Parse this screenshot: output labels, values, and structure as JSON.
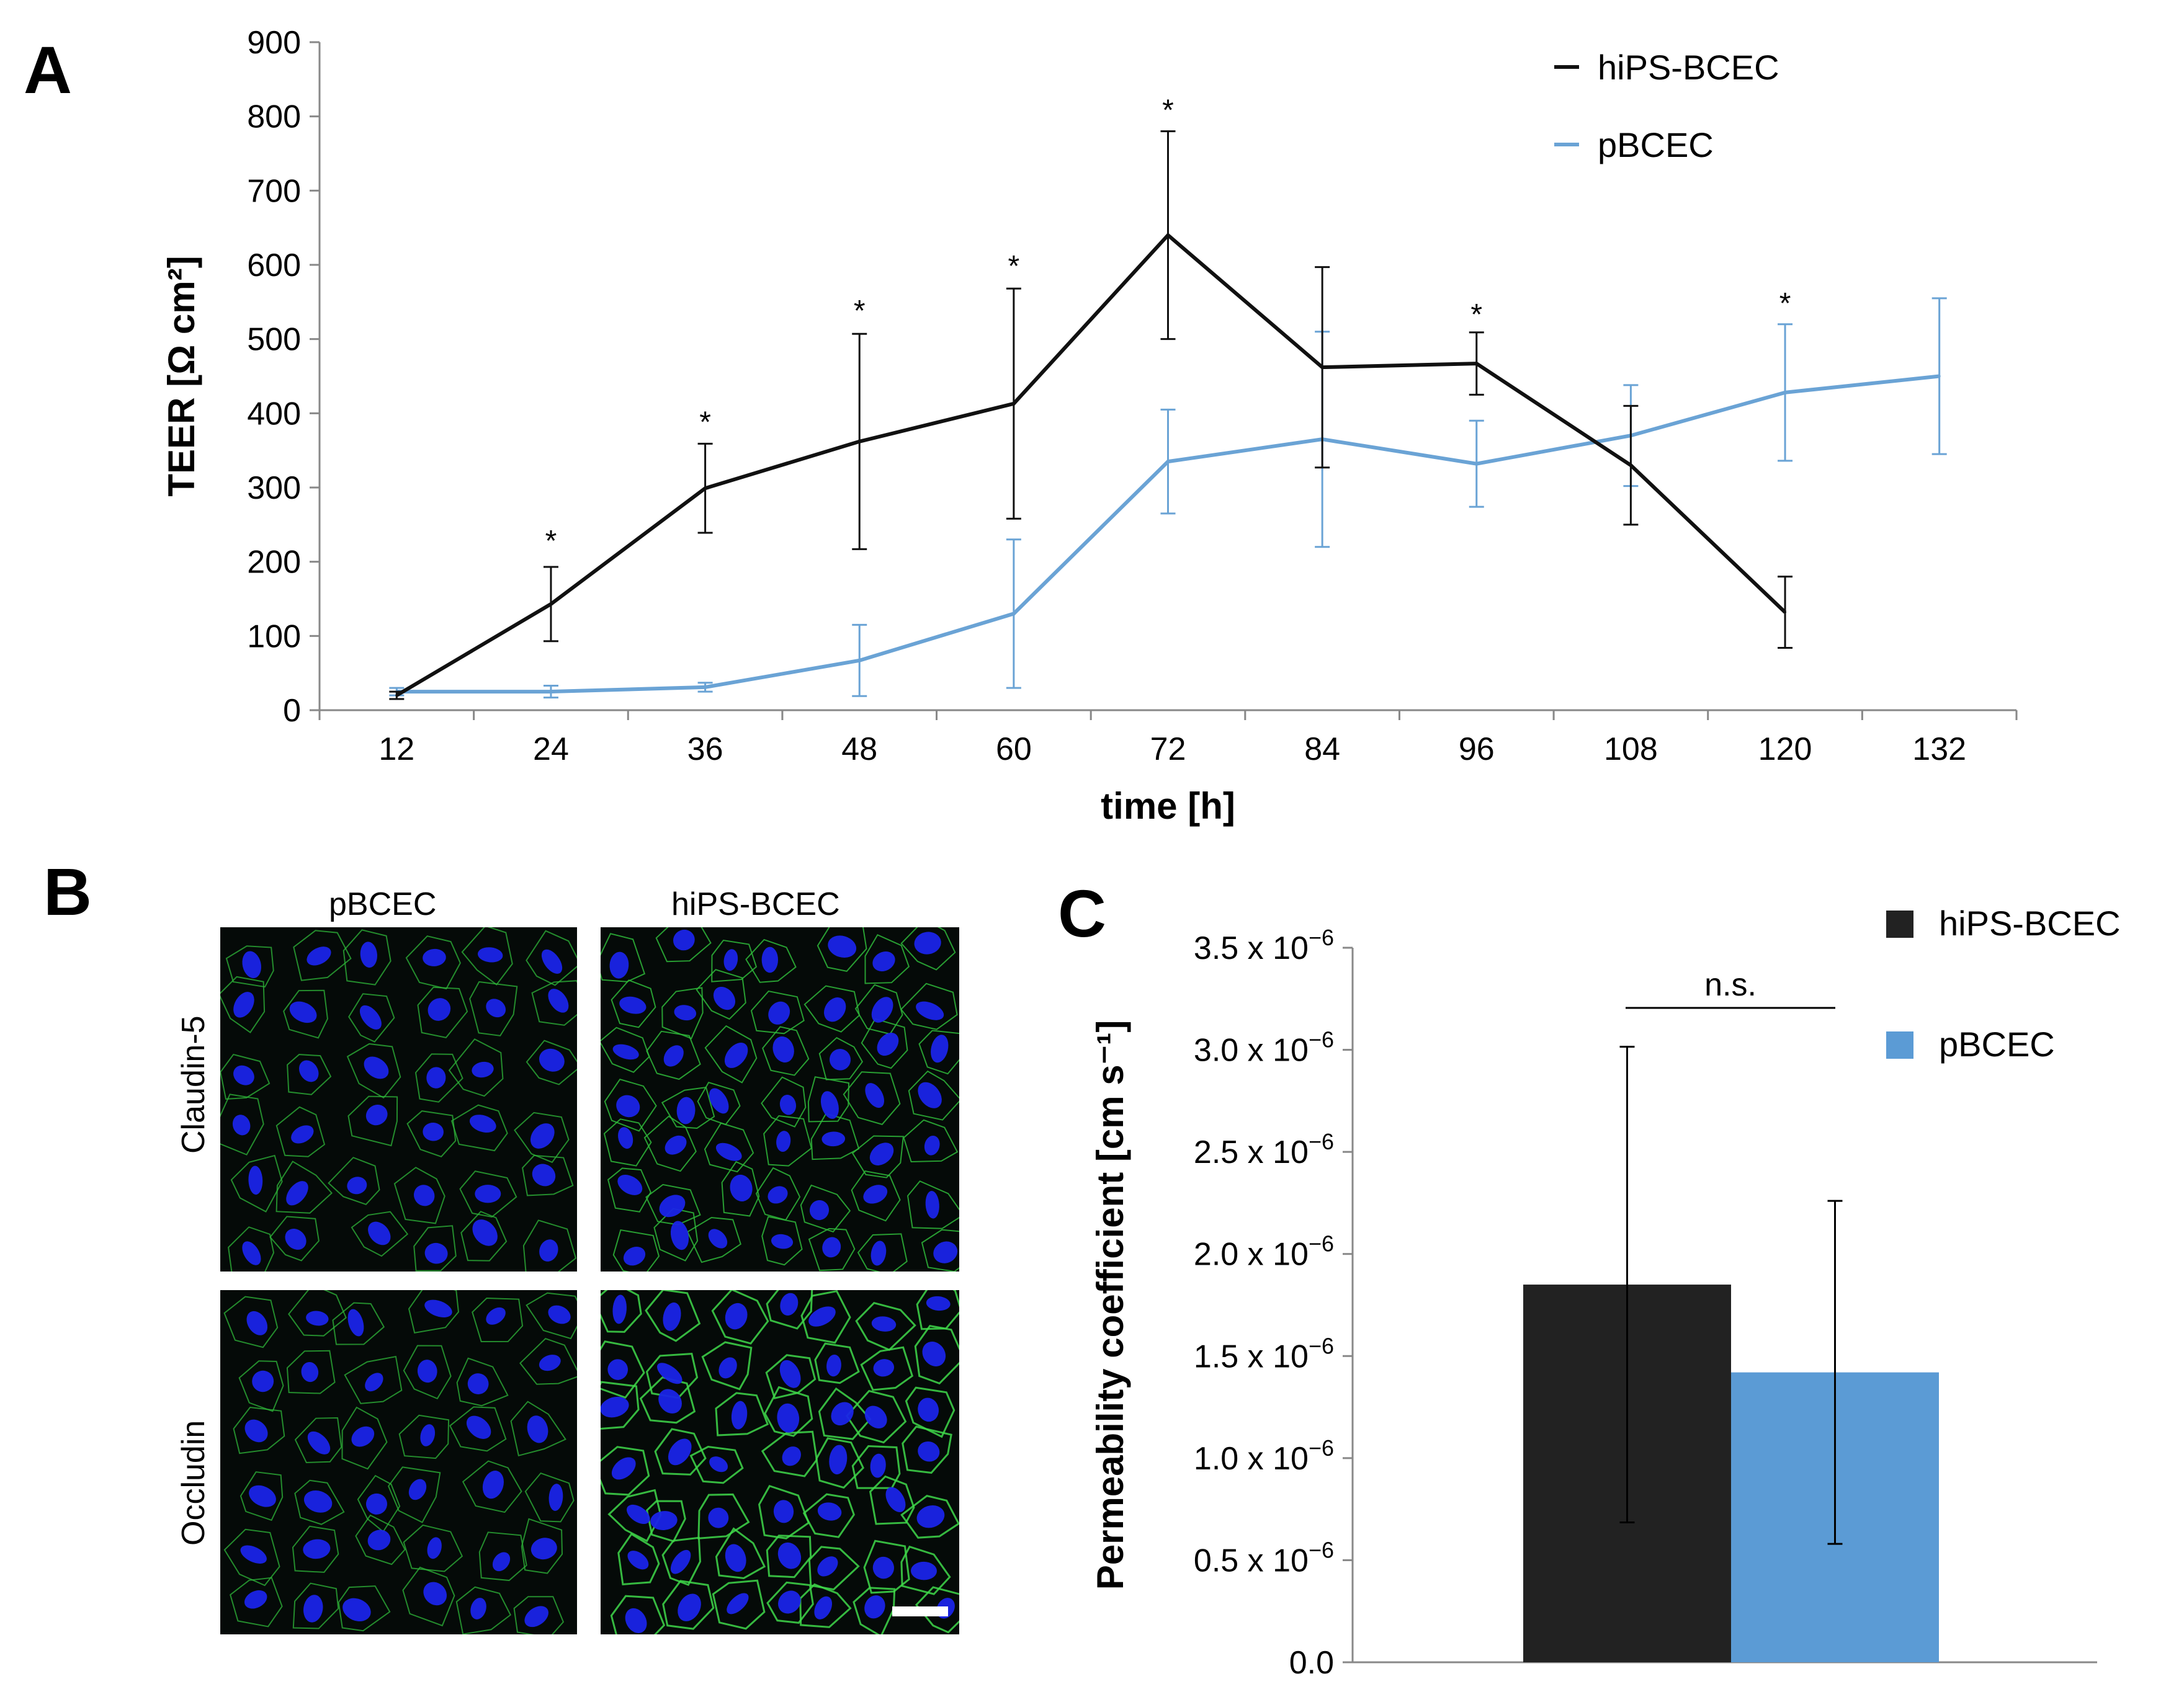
{
  "panels": {
    "a": "A",
    "b": "B",
    "c": "C"
  },
  "colors": {
    "hips": "#111111",
    "pbcec": "#6aa3d5",
    "bar_hips": "#222222",
    "bar_pbcec": "#5b9bd5",
    "axis": "#888888"
  },
  "chart_data": [
    {
      "type": "line",
      "title": "",
      "xlabel": "time [h]",
      "ylabel": "TEER [Ω cm²]",
      "x": [
        12,
        24,
        36,
        48,
        60,
        72,
        84,
        96,
        108,
        120,
        132
      ],
      "x_tick_labels": [
        "12",
        "24",
        "36",
        "48",
        "60",
        "72",
        "84",
        "96",
        "108",
        "120",
        "132"
      ],
      "y_ticks": [
        0,
        100,
        200,
        300,
        400,
        500,
        600,
        700,
        800,
        900
      ],
      "y_tick_labels": [
        "0",
        "100",
        "200",
        "300",
        "400",
        "500",
        "600",
        "700",
        "800",
        "900"
      ],
      "ylim": [
        0,
        900
      ],
      "legend": "top-right",
      "series": [
        {
          "name": "hiPS-BCEC",
          "color": "#111111",
          "x": [
            12,
            24,
            36,
            48,
            60,
            72,
            84,
            96,
            108,
            120
          ],
          "values": [
            20,
            143,
            299,
            362,
            413,
            640,
            462,
            467,
            330,
            132
          ],
          "errors": [
            5,
            50,
            60,
            145,
            155,
            140,
            135,
            42,
            80,
            48
          ]
        },
        {
          "name": "pBCEC",
          "color": "#6aa3d5",
          "x": [
            12,
            24,
            36,
            48,
            60,
            72,
            84,
            96,
            108,
            120,
            132
          ],
          "values": [
            25,
            25,
            31,
            67,
            130,
            335,
            365,
            332,
            370,
            428,
            450
          ],
          "errors": [
            5,
            8,
            6,
            48,
            100,
            70,
            145,
            58,
            68,
            92,
            105
          ]
        }
      ],
      "significance": {
        "symbol": "*",
        "x": [
          24,
          36,
          48,
          60,
          72,
          96,
          120
        ],
        "y_above": [
          240,
          400,
          550,
          610,
          820,
          545,
          560
        ]
      }
    },
    {
      "type": "bar",
      "title": "",
      "xlabel": "",
      "ylabel": "Permeability  coefficient [cm s⁻¹]",
      "categories": [
        "hiPS-BCEC",
        "pBCEC"
      ],
      "values": [
        1.85e-06,
        1.42e-06
      ],
      "errors": [
        1.165e-06,
        8.4e-07
      ],
      "colors": [
        "#222222",
        "#5b9bd5"
      ],
      "ylim": [
        0,
        3.5e-06
      ],
      "y_ticks": [
        0,
        5e-07,
        1e-06,
        1.5e-06,
        2e-06,
        2.5e-06,
        3e-06,
        3.5e-06
      ],
      "y_tick_mantissa": [
        "0.0",
        "0.5 x 10",
        "1.0 x 10",
        "1.5 x 10",
        "2.0 x 10",
        "2.5 x 10",
        "3.0 x 10",
        "3.5 x 10"
      ],
      "y_tick_exponent": [
        "",
        "−6",
        "−6",
        "−6",
        "−6",
        "−6",
        "−6",
        "−6"
      ],
      "legend": "top-right",
      "annotation": "n.s."
    }
  ],
  "micrographs": {
    "col_labels": [
      "pBCEC",
      "hiPS-BCEC"
    ],
    "row_labels": [
      "Claudin-5",
      "Occludin"
    ]
  }
}
